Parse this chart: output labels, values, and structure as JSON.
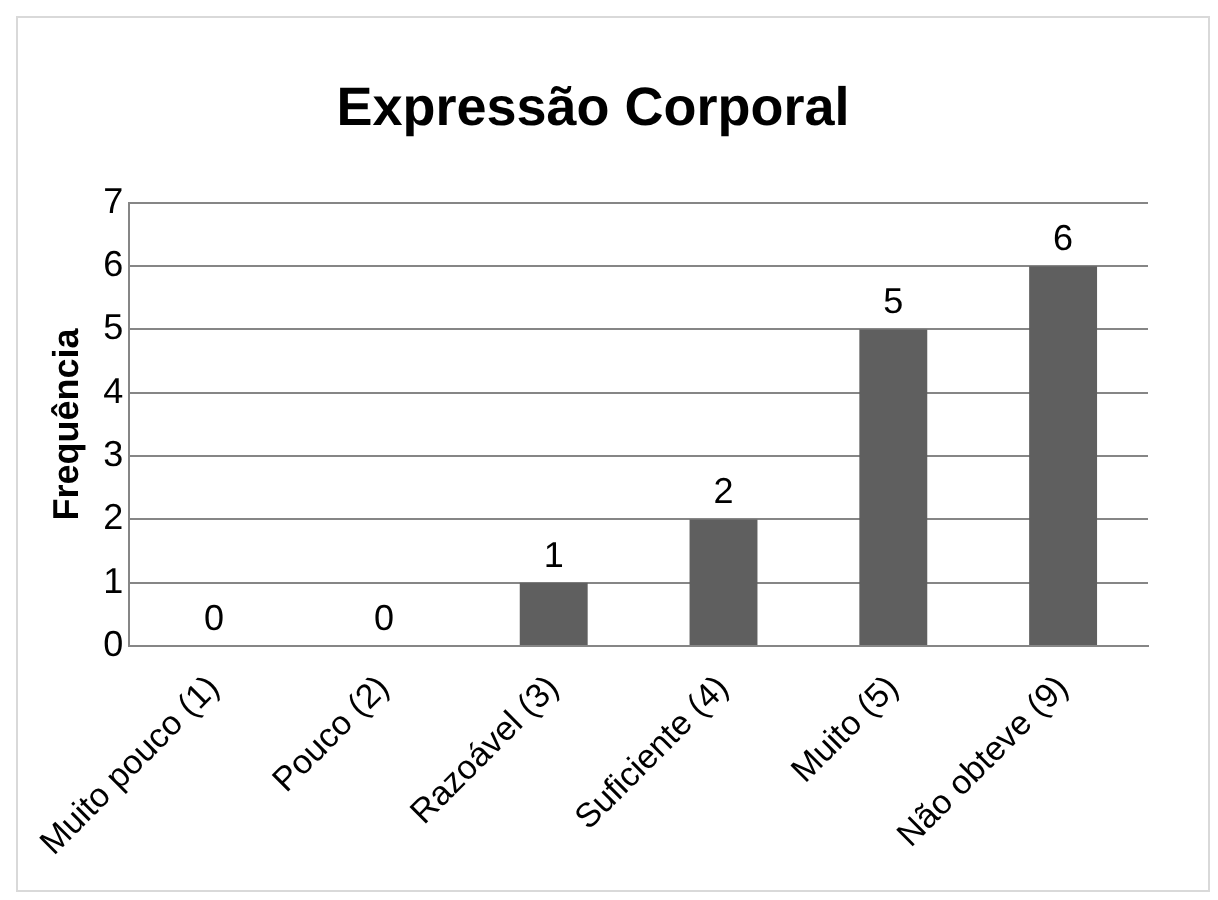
{
  "chart_data": {
    "type": "bar",
    "title": "Expressão Corporal",
    "ylabel": "Frequência",
    "categories": [
      "Muito pouco (1)",
      "Pouco (2)",
      "Razoável (3)",
      "Suficiente (4)",
      "Muito (5)",
      "Não obteve (9)"
    ],
    "values": [
      0,
      0,
      1,
      2,
      5,
      6
    ],
    "color": "#5f5f5f",
    "ylim": [
      0,
      7
    ],
    "yticks": [
      0,
      1,
      2,
      3,
      4,
      5,
      6,
      7
    ],
    "grid": "y",
    "legend": false,
    "data_labels": true
  }
}
